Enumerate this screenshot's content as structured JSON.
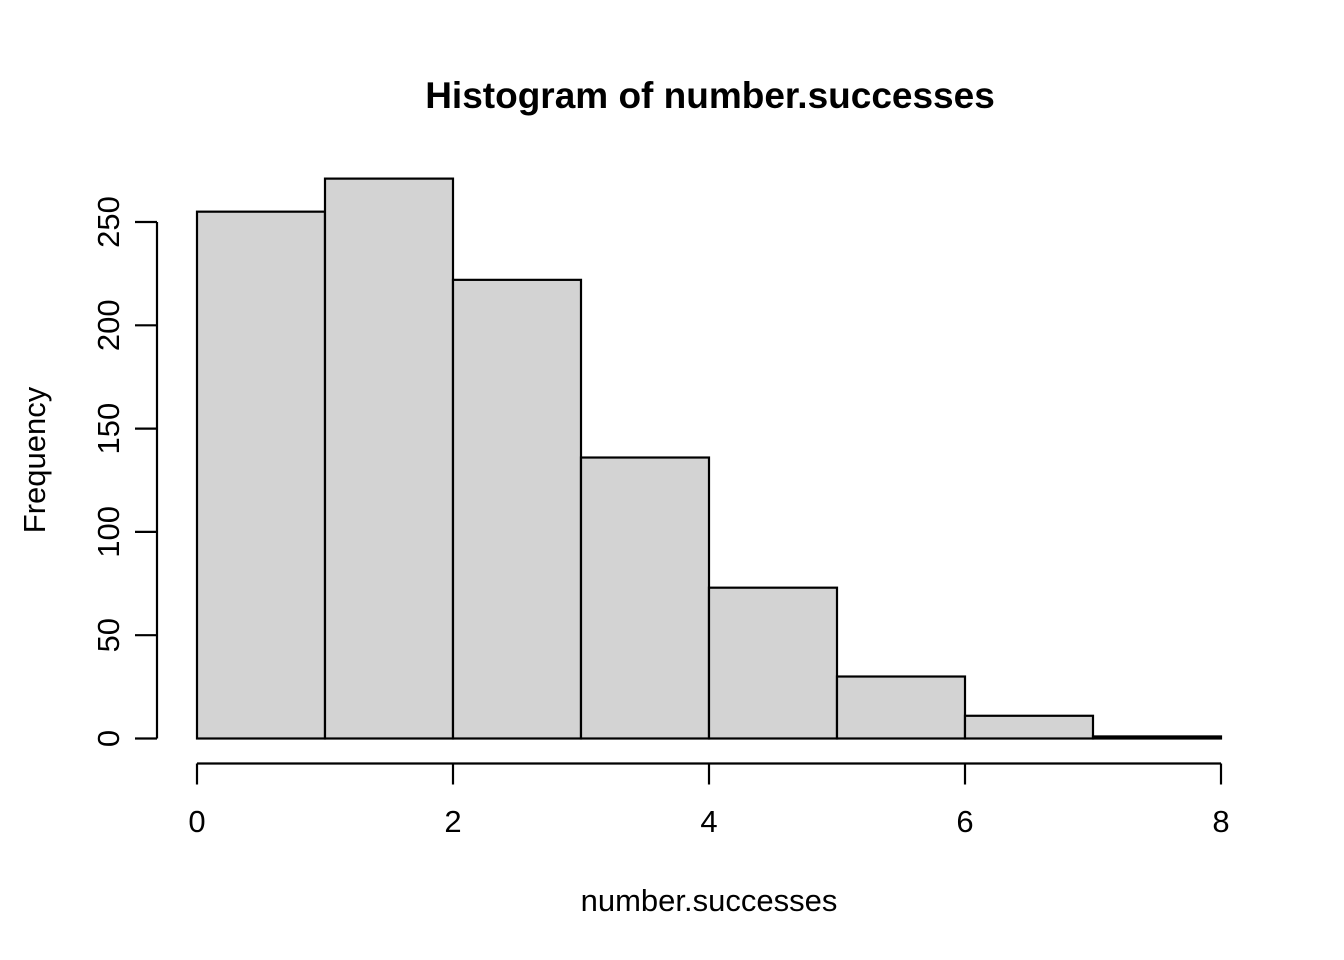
{
  "chart_data": {
    "type": "bar",
    "subtype": "histogram",
    "title": "Histogram of number.successes",
    "xlabel": "number.successes",
    "ylabel": "Frequency",
    "bin_edges": [
      0,
      1,
      2,
      3,
      4,
      5,
      6,
      7,
      8
    ],
    "counts": [
      255,
      271,
      222,
      136,
      73,
      30,
      11,
      1
    ],
    "x_ticks": [
      0,
      2,
      4,
      6,
      8
    ],
    "y_ticks": [
      0,
      50,
      100,
      150,
      200,
      250
    ],
    "xlim": [
      0,
      8
    ],
    "ylim": [
      0,
      250
    ],
    "grid": false,
    "legend": false,
    "colors": {
      "bar_fill": "#d3d3d3",
      "bar_stroke": "#000000",
      "axis": "#000000",
      "text": "#000000",
      "background": "#ffffff"
    }
  }
}
